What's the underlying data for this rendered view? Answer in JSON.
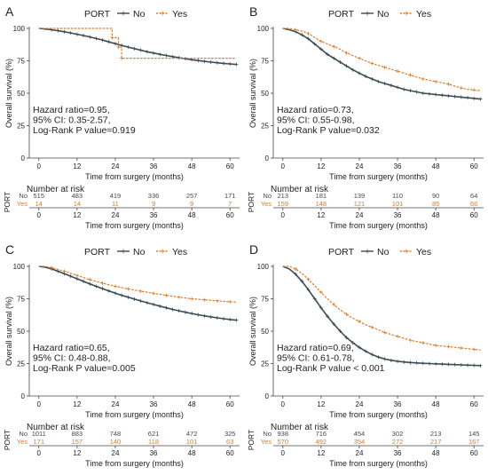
{
  "colors": {
    "no": "#3b4b54",
    "yes": "#e07b24",
    "axis": "#444444",
    "text": "#222222"
  },
  "legend": {
    "title": "PORT",
    "labels": [
      "No",
      "Yes"
    ]
  },
  "risk_table": {
    "title": "Number at risk",
    "ylabel": "PORT",
    "rows": [
      "No",
      "Yes"
    ]
  },
  "chart_data": [
    {
      "type": "line",
      "panel_label": "A",
      "xlabel": "Time from surgery (months)",
      "ylabel": "Overall survival (%)",
      "xlim": [
        -3,
        63
      ],
      "ylim": [
        0,
        100
      ],
      "xticks": [
        0,
        12,
        24,
        36,
        48,
        60
      ],
      "yticks": [
        0,
        25,
        50,
        75,
        100
      ],
      "series": [
        {
          "name": "No",
          "x": [
            0,
            2,
            4,
            6,
            8,
            10,
            12,
            14,
            16,
            18,
            20,
            22,
            24,
            26,
            28,
            30,
            32,
            34,
            36,
            38,
            40,
            42,
            44,
            46,
            48,
            50,
            52,
            54,
            56,
            58,
            60,
            62
          ],
          "y": [
            100,
            99.5,
            99,
            98.2,
            97.4,
            96.5,
            95.5,
            94.5,
            93.4,
            92.2,
            91,
            89.6,
            88.2,
            86.9,
            85.6,
            84.4,
            83.2,
            82,
            81,
            80,
            79.1,
            78.2,
            77.4,
            76.6,
            75.9,
            75.2,
            74.6,
            74,
            73.5,
            73,
            72.6,
            72.2
          ]
        },
        {
          "name": "Yes",
          "x": [
            0,
            23,
            23,
            25,
            25,
            26,
            26,
            62
          ],
          "y": [
            100,
            100,
            92.8,
            92.8,
            85.6,
            85.6,
            77,
            77
          ]
        }
      ],
      "annotation": [
        "Hazard ratio=0.95,",
        "95% CI: 0.35-2.57,",
        "Log-Rank P value=0.919"
      ],
      "risk": {
        "times": [
          0,
          12,
          24,
          36,
          48,
          60
        ],
        "No": [
          515,
          483,
          419,
          336,
          257,
          171
        ],
        "Yes": [
          14,
          14,
          11,
          9,
          9,
          7
        ]
      }
    },
    {
      "type": "line",
      "panel_label": "B",
      "xlabel": "Time from surgery (months)",
      "ylabel": "Overall survival (%)",
      "xlim": [
        -3,
        63
      ],
      "ylim": [
        0,
        100
      ],
      "xticks": [
        0,
        12,
        24,
        36,
        48,
        60
      ],
      "yticks": [
        0,
        25,
        50,
        75,
        100
      ],
      "series": [
        {
          "name": "No",
          "x": [
            0,
            2,
            4,
            6,
            8,
            10,
            12,
            14,
            16,
            18,
            20,
            22,
            24,
            26,
            28,
            30,
            32,
            34,
            36,
            38,
            40,
            42,
            44,
            46,
            48,
            50,
            52,
            54,
            56,
            58,
            60,
            62
          ],
          "y": [
            100,
            99,
            97.5,
            95,
            92,
            88,
            84,
            80,
            77,
            74,
            71,
            68,
            65.5,
            63,
            61,
            59,
            57.5,
            56,
            54.5,
            53,
            52,
            51,
            50,
            49.5,
            49,
            48.5,
            48,
            47.5,
            47,
            46.5,
            46,
            45.5
          ]
        },
        {
          "name": "Yes",
          "x": [
            0,
            2,
            4,
            6,
            8,
            10,
            12,
            14,
            16,
            18,
            20,
            22,
            24,
            26,
            28,
            30,
            32,
            34,
            36,
            38,
            40,
            42,
            44,
            46,
            48,
            50,
            52,
            54,
            56,
            58,
            60,
            62
          ],
          "y": [
            100,
            100,
            99,
            98,
            96,
            93,
            90,
            88,
            86,
            84,
            81,
            79,
            77,
            75,
            73,
            71.5,
            70,
            68.5,
            67,
            65.5,
            64,
            62.5,
            61,
            60,
            59,
            58,
            57,
            55.5,
            54,
            53,
            52.5,
            52
          ]
        }
      ],
      "annotation": [
        "Hazard ratio=0.73,",
        "95% CI: 0.55-0.98,",
        "Log-Rank P value=0.032"
      ],
      "risk": {
        "times": [
          0,
          12,
          24,
          36,
          48,
          60
        ],
        "No": [
          213,
          181,
          139,
          110,
          90,
          64
        ],
        "Yes": [
          159,
          148,
          121,
          101,
          85,
          66
        ]
      }
    },
    {
      "type": "line",
      "panel_label": "C",
      "xlabel": "Time from surgery (months)",
      "ylabel": "Overall survival (%)",
      "xlim": [
        -3,
        63
      ],
      "ylim": [
        0,
        100
      ],
      "xticks": [
        0,
        12,
        24,
        36,
        48,
        60
      ],
      "yticks": [
        0,
        25,
        50,
        75,
        100
      ],
      "series": [
        {
          "name": "No",
          "x": [
            0,
            2,
            4,
            6,
            8,
            10,
            12,
            14,
            16,
            18,
            20,
            22,
            24,
            26,
            28,
            30,
            32,
            34,
            36,
            38,
            40,
            42,
            44,
            46,
            48,
            50,
            52,
            54,
            56,
            58,
            60,
            62
          ],
          "y": [
            100,
            99.3,
            98,
            96.2,
            94.3,
            92.4,
            90.4,
            88.4,
            86.5,
            84.6,
            82.8,
            81,
            79.3,
            77.7,
            76.2,
            74.7,
            73.3,
            71.9,
            70.6,
            69.3,
            68,
            66.8,
            65.7,
            64.6,
            63.6,
            62.7,
            61.8,
            61,
            60.3,
            59.6,
            59,
            58.5
          ]
        },
        {
          "name": "Yes",
          "x": [
            0,
            2,
            4,
            6,
            8,
            10,
            12,
            14,
            16,
            18,
            20,
            22,
            24,
            26,
            28,
            30,
            32,
            34,
            36,
            38,
            40,
            42,
            44,
            46,
            48,
            50,
            52,
            54,
            56,
            58,
            60,
            62
          ],
          "y": [
            100,
            100,
            99,
            97.6,
            96.2,
            94.6,
            93,
            91.4,
            89.8,
            88.4,
            87,
            85.8,
            84.6,
            83.6,
            82.6,
            81.7,
            80.8,
            80,
            79.2,
            78.4,
            77.6,
            76.9,
            76.2,
            75.6,
            75,
            74.6,
            74.2,
            73.8,
            73.4,
            73,
            72.7,
            72.4
          ]
        }
      ],
      "annotation": [
        "Hazard ratio=0.65,",
        "95% CI: 0.48-0.88,",
        "Log-Rank P value=0.005"
      ],
      "risk": {
        "times": [
          0,
          12,
          24,
          36,
          48,
          60
        ],
        "No": [
          1011,
          883,
          748,
          621,
          472,
          325
        ],
        "Yes": [
          171,
          157,
          140,
          118,
          101,
          63
        ]
      }
    },
    {
      "type": "line",
      "panel_label": "D",
      "xlabel": "Time from surgery (months)",
      "ylabel": "Overall survival (%)",
      "xlim": [
        -3,
        63
      ],
      "ylim": [
        0,
        100
      ],
      "xticks": [
        0,
        12,
        24,
        36,
        48,
        60
      ],
      "yticks": [
        0,
        25,
        50,
        75,
        100
      ],
      "series": [
        {
          "name": "No",
          "x": [
            0,
            2,
            4,
            6,
            8,
            10,
            12,
            14,
            16,
            18,
            20,
            22,
            24,
            26,
            28,
            30,
            32,
            34,
            36,
            38,
            40,
            42,
            44,
            46,
            48,
            50,
            52,
            54,
            56,
            58,
            60,
            62
          ],
          "y": [
            100,
            98,
            94,
            88.5,
            82,
            75,
            68,
            61.5,
            55.5,
            50,
            45,
            41,
            37.5,
            34.5,
            32,
            30,
            28.5,
            27.5,
            26.8,
            26.2,
            25.8,
            25.5,
            25.2,
            25,
            24.8,
            24.6,
            24.4,
            24.2,
            24,
            23.8,
            23.6,
            23.4
          ]
        },
        {
          "name": "Yes",
          "x": [
            0,
            2,
            4,
            6,
            8,
            10,
            12,
            14,
            16,
            18,
            20,
            22,
            24,
            26,
            28,
            30,
            32,
            34,
            36,
            38,
            40,
            42,
            44,
            46,
            48,
            50,
            52,
            54,
            56,
            58,
            60,
            62
          ],
          "y": [
            100,
            100,
            98,
            94.5,
            90,
            85,
            80,
            75,
            70.5,
            66.5,
            63,
            60,
            57.5,
            55,
            53,
            51,
            49,
            47.5,
            46,
            44.5,
            43,
            42,
            41,
            40,
            39,
            38.5,
            38,
            37.5,
            37,
            36.5,
            36,
            35.5
          ]
        }
      ],
      "annotation": [
        "Hazard ratio=0.69,",
        "95% CI: 0.61-0.78,",
        "Log-Rank P value < 0.001"
      ],
      "risk": {
        "times": [
          0,
          12,
          24,
          36,
          48,
          60
        ],
        "No": [
          938,
          716,
          454,
          302,
          213,
          145
        ],
        "Yes": [
          570,
          492,
          354,
          272,
          217,
          167
        ]
      }
    }
  ]
}
